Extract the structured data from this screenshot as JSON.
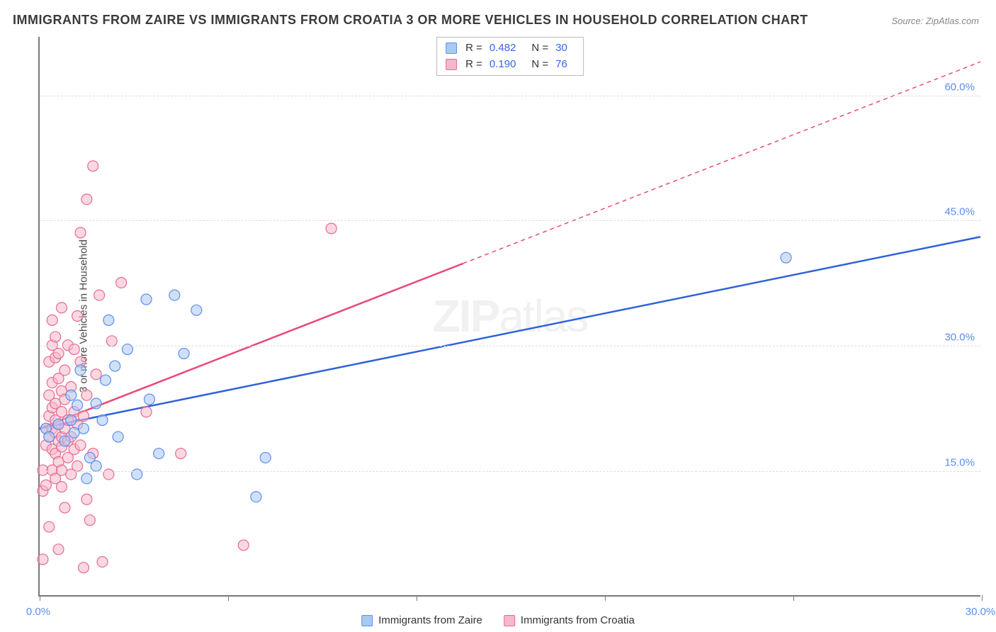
{
  "title": "IMMIGRANTS FROM ZAIRE VS IMMIGRANTS FROM CROATIA 3 OR MORE VEHICLES IN HOUSEHOLD CORRELATION CHART",
  "source": "Source: ZipAtlas.com",
  "y_axis_label": "3 or more Vehicles in Household",
  "watermark": {
    "bold": "ZIP",
    "light": "atlas"
  },
  "chart": {
    "type": "scatter",
    "background_color": "#ffffff",
    "grid_color": "#dddddd",
    "axis_color": "#777777",
    "tick_label_color": "#5b8def",
    "tick_fontsize": 15,
    "xlim": [
      0.0,
      30.0
    ],
    "ylim": [
      0.0,
      67.0
    ],
    "y_gridlines": [
      15.0,
      30.0,
      45.0,
      60.0
    ],
    "y_gridline_labels": [
      "15.0%",
      "30.0%",
      "45.0%",
      "60.0%"
    ],
    "x_ticks": [
      0.0,
      6.0,
      12.0,
      18.0,
      24.0,
      30.0
    ],
    "x_labels_shown": {
      "0.0": "0.0%",
      "30.0": "30.0%"
    },
    "marker_radius": 7.5,
    "marker_opacity": 0.55,
    "series": [
      {
        "name": "Immigrants from Zaire",
        "color_fill": "#a9c9f0",
        "color_stroke": "#5b8def",
        "r_value": "0.482",
        "n_value": "30",
        "regression": {
          "x1": 0.0,
          "y1": 20.0,
          "x2": 30.0,
          "y2": 43.0,
          "solid_until_x": 30.0,
          "stroke": "#2f62d9",
          "stroke_width": 2.5
        },
        "points": [
          [
            0.2,
            20.0
          ],
          [
            0.3,
            19.0
          ],
          [
            0.6,
            20.5
          ],
          [
            0.8,
            18.5
          ],
          [
            1.0,
            21.0
          ],
          [
            1.0,
            24.0
          ],
          [
            1.1,
            19.5
          ],
          [
            1.2,
            22.8
          ],
          [
            1.3,
            27.0
          ],
          [
            1.4,
            20.0
          ],
          [
            1.5,
            14.0
          ],
          [
            1.6,
            16.5
          ],
          [
            1.8,
            23.0
          ],
          [
            1.8,
            15.5
          ],
          [
            2.0,
            21.0
          ],
          [
            2.1,
            25.8
          ],
          [
            2.2,
            33.0
          ],
          [
            2.4,
            27.5
          ],
          [
            2.5,
            19.0
          ],
          [
            2.8,
            29.5
          ],
          [
            3.1,
            14.5
          ],
          [
            3.4,
            35.5
          ],
          [
            3.5,
            23.5
          ],
          [
            3.8,
            17.0
          ],
          [
            4.3,
            36.0
          ],
          [
            4.6,
            29.0
          ],
          [
            5.0,
            34.2
          ],
          [
            6.9,
            11.8
          ],
          [
            7.2,
            16.5
          ],
          [
            23.8,
            40.5
          ]
        ]
      },
      {
        "name": "Immigrants from Croatia",
        "color_fill": "#f5b8ca",
        "color_stroke": "#e86a8f",
        "r_value": "0.190",
        "n_value": "76",
        "regression": {
          "x1": 0.0,
          "y1": 20.0,
          "x2": 30.0,
          "y2": 64.0,
          "solid_until_x": 13.5,
          "stroke": "#e94b76",
          "stroke_width": 2.5
        },
        "points": [
          [
            0.1,
            4.3
          ],
          [
            0.1,
            12.5
          ],
          [
            0.1,
            15.0
          ],
          [
            0.2,
            13.2
          ],
          [
            0.2,
            18.0
          ],
          [
            0.2,
            20.0
          ],
          [
            0.3,
            8.2
          ],
          [
            0.3,
            19.0
          ],
          [
            0.3,
            21.5
          ],
          [
            0.3,
            24.0
          ],
          [
            0.3,
            28.0
          ],
          [
            0.4,
            15.0
          ],
          [
            0.4,
            17.5
          ],
          [
            0.4,
            20.0
          ],
          [
            0.4,
            22.5
          ],
          [
            0.4,
            25.5
          ],
          [
            0.4,
            30.0
          ],
          [
            0.4,
            33.0
          ],
          [
            0.5,
            14.0
          ],
          [
            0.5,
            17.0
          ],
          [
            0.5,
            19.5
          ],
          [
            0.5,
            21.0
          ],
          [
            0.5,
            23.0
          ],
          [
            0.5,
            28.5
          ],
          [
            0.5,
            31.0
          ],
          [
            0.6,
            5.5
          ],
          [
            0.6,
            16.0
          ],
          [
            0.6,
            18.5
          ],
          [
            0.6,
            20.5
          ],
          [
            0.6,
            26.0
          ],
          [
            0.6,
            29.0
          ],
          [
            0.7,
            13.0
          ],
          [
            0.7,
            15.0
          ],
          [
            0.7,
            17.8
          ],
          [
            0.7,
            19.0
          ],
          [
            0.7,
            22.0
          ],
          [
            0.7,
            24.5
          ],
          [
            0.7,
            34.5
          ],
          [
            0.8,
            10.5
          ],
          [
            0.8,
            20.0
          ],
          [
            0.8,
            23.5
          ],
          [
            0.8,
            27.0
          ],
          [
            0.9,
            16.5
          ],
          [
            0.9,
            18.5
          ],
          [
            0.9,
            21.0
          ],
          [
            0.9,
            30.0
          ],
          [
            1.0,
            14.5
          ],
          [
            1.0,
            19.0
          ],
          [
            1.0,
            25.0
          ],
          [
            1.1,
            17.5
          ],
          [
            1.1,
            22.0
          ],
          [
            1.1,
            29.5
          ],
          [
            1.2,
            15.5
          ],
          [
            1.2,
            20.5
          ],
          [
            1.2,
            33.5
          ],
          [
            1.3,
            18.0
          ],
          [
            1.3,
            28.0
          ],
          [
            1.3,
            43.5
          ],
          [
            1.4,
            3.3
          ],
          [
            1.4,
            21.5
          ],
          [
            1.5,
            11.5
          ],
          [
            1.5,
            24.0
          ],
          [
            1.5,
            47.5
          ],
          [
            1.6,
            9.0
          ],
          [
            1.7,
            17.0
          ],
          [
            1.7,
            51.5
          ],
          [
            1.8,
            26.5
          ],
          [
            1.9,
            36.0
          ],
          [
            2.0,
            4.0
          ],
          [
            2.2,
            14.5
          ],
          [
            2.3,
            30.5
          ],
          [
            2.6,
            37.5
          ],
          [
            3.4,
            22.0
          ],
          [
            4.5,
            17.0
          ],
          [
            6.5,
            6.0
          ],
          [
            9.3,
            44.0
          ]
        ]
      }
    ],
    "stats_box": {
      "labels": {
        "r": "R =",
        "n": "N ="
      }
    },
    "bottom_legend": [
      {
        "label": "Immigrants from Zaire",
        "fill": "#a9c9f0",
        "stroke": "#5b8def"
      },
      {
        "label": "Immigrants from Croatia",
        "fill": "#f5b8ca",
        "stroke": "#e86a8f"
      }
    ]
  }
}
